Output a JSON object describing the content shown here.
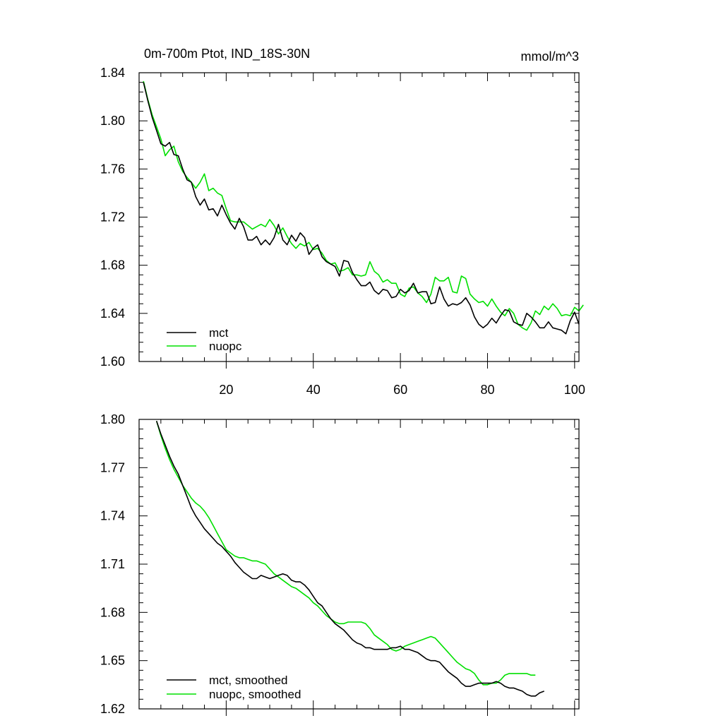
{
  "chart_data": [
    {
      "type": "line",
      "title_left": "0m-700m Ptot, IND_18S-30N",
      "title_right": "mmol/m^3",
      "xlabel": "",
      "ylabel": "",
      "xlim": [
        0,
        101
      ],
      "ylim": [
        1.6,
        1.84
      ],
      "xticks": [
        20,
        40,
        60,
        80,
        100
      ],
      "yticks": [
        "1.60",
        "1.64",
        "1.68",
        "1.72",
        "1.76",
        "1.80",
        "1.84"
      ],
      "legend_position": "bottom-left",
      "series": [
        {
          "name": "mct",
          "color": "#000000",
          "values": [
            1.832,
            1.817,
            1.803,
            1.792,
            1.781,
            1.779,
            1.782,
            1.772,
            1.771,
            1.76,
            1.751,
            1.749,
            1.737,
            1.73,
            1.735,
            1.726,
            1.727,
            1.721,
            1.73,
            1.722,
            1.715,
            1.71,
            1.719,
            1.712,
            1.701,
            1.701,
            1.704,
            1.697,
            1.701,
            1.697,
            1.703,
            1.714,
            1.701,
            1.697,
            1.705,
            1.7,
            1.707,
            1.703,
            1.689,
            1.694,
            1.697,
            1.687,
            1.683,
            1.681,
            1.679,
            1.671,
            1.684,
            1.683,
            1.674,
            1.668,
            1.663,
            1.663,
            1.666,
            1.659,
            1.656,
            1.66,
            1.659,
            1.653,
            1.654,
            1.66,
            1.657,
            1.659,
            1.665,
            1.657,
            1.658,
            1.658,
            1.648,
            1.649,
            1.662,
            1.652,
            1.646,
            1.648,
            1.647,
            1.649,
            1.653,
            1.647,
            1.637,
            1.631,
            1.628,
            1.631,
            1.636,
            1.632,
            1.638,
            1.643,
            1.642,
            1.633,
            1.631,
            1.63,
            1.64,
            1.637,
            1.633,
            1.628,
            1.628,
            1.633,
            1.628,
            1.627,
            1.626,
            1.623,
            1.634,
            1.641,
            1.631
          ]
        },
        {
          "name": "nuopc",
          "color": "#00e000",
          "values": [
            1.833,
            1.818,
            1.805,
            1.795,
            1.785,
            1.771,
            1.776,
            1.779,
            1.766,
            1.758,
            1.753,
            1.749,
            1.744,
            1.749,
            1.756,
            1.742,
            1.744,
            1.74,
            1.738,
            1.727,
            1.717,
            1.716,
            1.716,
            1.716,
            1.713,
            1.71,
            1.712,
            1.714,
            1.712,
            1.718,
            1.713,
            1.706,
            1.711,
            1.704,
            1.698,
            1.694,
            1.698,
            1.696,
            1.699,
            1.693,
            1.694,
            1.69,
            1.684,
            1.681,
            1.682,
            1.675,
            1.676,
            1.678,
            1.672,
            1.672,
            1.671,
            1.672,
            1.683,
            1.675,
            1.672,
            1.666,
            1.668,
            1.665,
            1.665,
            1.656,
            1.654,
            1.661,
            1.662,
            1.657,
            1.654,
            1.649,
            1.656,
            1.67,
            1.667,
            1.667,
            1.67,
            1.658,
            1.657,
            1.671,
            1.669,
            1.656,
            1.652,
            1.649,
            1.65,
            1.646,
            1.652,
            1.646,
            1.641,
            1.638,
            1.644,
            1.64,
            1.631,
            1.628,
            1.626,
            1.632,
            1.642,
            1.639,
            1.646,
            1.643,
            1.648,
            1.644,
            1.638,
            1.639,
            1.638,
            1.645,
            1.642,
            1.647
          ]
        }
      ]
    },
    {
      "type": "line",
      "title_left": "",
      "title_right": "",
      "xlabel": "",
      "ylabel": "",
      "xlim": [
        0,
        101
      ],
      "ylim": [
        1.62,
        1.8
      ],
      "xticks": [
        20,
        40,
        60,
        80,
        100
      ],
      "yticks": [
        "1.62",
        "1.65",
        "1.68",
        "1.71",
        "1.74",
        "1.77",
        "1.80"
      ],
      "legend_position": "bottom-left",
      "series": [
        {
          "name": "mct, smoothed",
          "color": "#000000",
          "x_start": 4,
          "values": [
            1.799,
            1.791,
            1.784,
            1.777,
            1.771,
            1.766,
            1.759,
            1.752,
            1.745,
            1.74,
            1.736,
            1.732,
            1.729,
            1.726,
            1.723,
            1.721,
            1.718,
            1.715,
            1.711,
            1.708,
            1.705,
            1.703,
            1.701,
            1.701,
            1.703,
            1.702,
            1.701,
            1.702,
            1.703,
            1.704,
            1.703,
            1.7,
            1.699,
            1.699,
            1.697,
            1.694,
            1.69,
            1.686,
            1.684,
            1.68,
            1.676,
            1.673,
            1.671,
            1.669,
            1.666,
            1.663,
            1.661,
            1.66,
            1.658,
            1.658,
            1.657,
            1.657,
            1.657,
            1.657,
            1.658,
            1.658,
            1.659,
            1.657,
            1.657,
            1.656,
            1.655,
            1.653,
            1.651,
            1.65,
            1.65,
            1.649,
            1.646,
            1.643,
            1.641,
            1.639,
            1.636,
            1.634,
            1.634,
            1.635,
            1.636,
            1.636,
            1.636,
            1.636,
            1.637,
            1.636,
            1.634,
            1.633,
            1.633,
            1.632,
            1.631,
            1.629,
            1.628,
            1.628,
            1.63,
            1.631
          ]
        },
        {
          "name": "nuopc, smoothed",
          "color": "#00e000",
          "x_start": 4,
          "values": [
            1.799,
            1.79,
            1.782,
            1.775,
            1.769,
            1.764,
            1.759,
            1.755,
            1.751,
            1.748,
            1.746,
            1.743,
            1.739,
            1.734,
            1.729,
            1.724,
            1.719,
            1.717,
            1.715,
            1.714,
            1.714,
            1.713,
            1.712,
            1.712,
            1.711,
            1.71,
            1.707,
            1.704,
            1.702,
            1.7,
            1.698,
            1.696,
            1.695,
            1.693,
            1.691,
            1.689,
            1.686,
            1.684,
            1.681,
            1.678,
            1.676,
            1.674,
            1.673,
            1.673,
            1.674,
            1.674,
            1.674,
            1.674,
            1.673,
            1.67,
            1.666,
            1.664,
            1.662,
            1.66,
            1.657,
            1.656,
            1.657,
            1.659,
            1.66,
            1.661,
            1.662,
            1.663,
            1.664,
            1.665,
            1.664,
            1.661,
            1.658,
            1.655,
            1.652,
            1.649,
            1.647,
            1.645,
            1.644,
            1.642,
            1.638,
            1.635,
            1.635,
            1.636,
            1.636,
            1.638,
            1.641,
            1.642,
            1.642,
            1.642,
            1.642,
            1.642,
            1.641,
            1.641
          ]
        }
      ]
    }
  ]
}
